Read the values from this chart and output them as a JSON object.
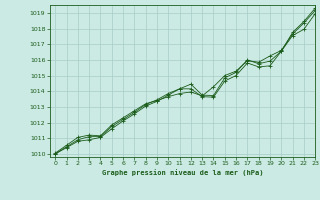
{
  "title": "Graphe pression niveau de la mer (hPa)",
  "bg_color": "#cceae4",
  "grid_color": "#a8cdc8",
  "line_color": "#1a5c1a",
  "xlim": [
    -0.5,
    23
  ],
  "ylim": [
    1009.8,
    1019.5
  ],
  "xticks": [
    0,
    1,
    2,
    3,
    4,
    5,
    6,
    7,
    8,
    9,
    10,
    11,
    12,
    13,
    14,
    15,
    16,
    17,
    18,
    19,
    20,
    21,
    22,
    23
  ],
  "yticks": [
    1010,
    1011,
    1012,
    1013,
    1014,
    1015,
    1016,
    1017,
    1018,
    1019
  ],
  "series": [
    [
      1010.0,
      1010.4,
      1010.8,
      1010.9,
      1011.05,
      1011.6,
      1012.1,
      1012.55,
      1013.05,
      1013.35,
      1013.75,
      1014.15,
      1014.15,
      1013.65,
      1013.62,
      1014.65,
      1015.0,
      1015.8,
      1015.55,
      1015.62,
      1016.55,
      1017.55,
      1017.95,
      1018.95
    ],
    [
      1010.0,
      1010.45,
      1010.9,
      1011.1,
      1011.1,
      1011.75,
      1012.2,
      1012.65,
      1013.15,
      1013.45,
      1013.85,
      1014.15,
      1014.45,
      1013.75,
      1013.72,
      1014.85,
      1015.2,
      1016.0,
      1015.75,
      1015.92,
      1016.55,
      1017.75,
      1018.45,
      1019.3
    ],
    [
      1010.05,
      1010.55,
      1011.05,
      1011.2,
      1011.15,
      1011.85,
      1012.3,
      1012.75,
      1013.2,
      1013.4,
      1013.65,
      1013.85,
      1013.95,
      1013.7,
      1014.28,
      1015.0,
      1015.28,
      1015.95,
      1015.85,
      1016.25,
      1016.6,
      1017.65,
      1018.35,
      1019.15
    ]
  ]
}
